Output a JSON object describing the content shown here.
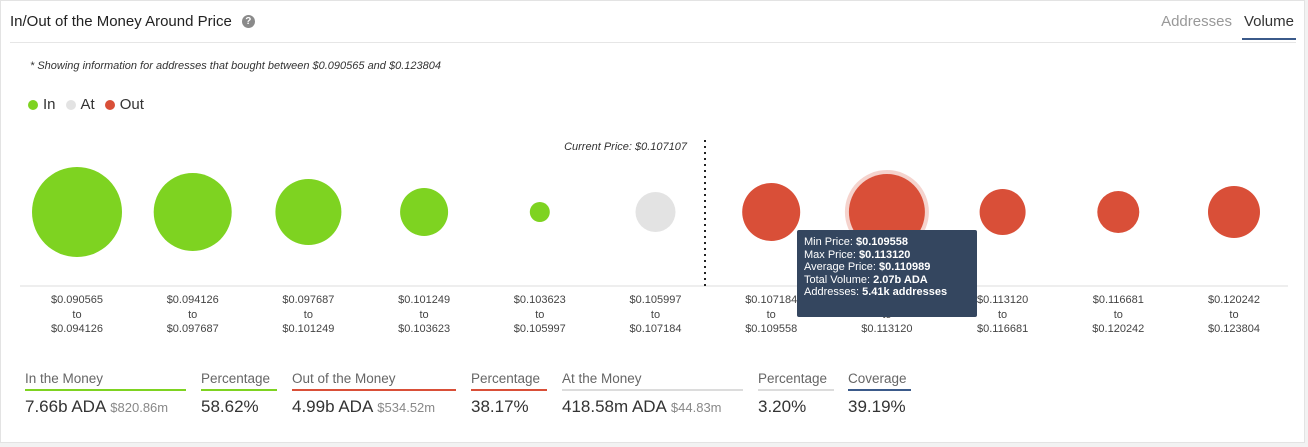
{
  "header": {
    "title": "In/Out of the Money Around Price",
    "help_icon": "?",
    "tabs": [
      "Addresses",
      "Volume"
    ],
    "active_tab": "Volume"
  },
  "note": "* Showing information for addresses that bought between $0.090565 and $0.123804",
  "legend": [
    {
      "label": "In",
      "color": "#7ed321"
    },
    {
      "label": "At",
      "color": "#e3e3e3"
    },
    {
      "label": "Out",
      "color": "#d94f38"
    }
  ],
  "chart_data": {
    "type": "scatter",
    "title": "",
    "current_price_label": "Current Price: $0.107107",
    "colors": {
      "In": "#7ed321",
      "At": "#e3e3e3",
      "Out": "#d94f38"
    },
    "categories": [
      {
        "from": "$0.090565",
        "to": "$0.094126",
        "status": "In",
        "size": 45
      },
      {
        "from": "$0.094126",
        "to": "$0.097687",
        "status": "In",
        "size": 39
      },
      {
        "from": "$0.097687",
        "to": "$0.101249",
        "status": "In",
        "size": 33
      },
      {
        "from": "$0.101249",
        "to": "$0.103623",
        "status": "In",
        "size": 24
      },
      {
        "from": "$0.103623",
        "to": "$0.105997",
        "status": "In",
        "size": 10
      },
      {
        "from": "$0.105997",
        "to": "$0.107184",
        "status": "At",
        "size": 20
      },
      {
        "from": "$0.107184",
        "to": "$0.109558",
        "status": "Out",
        "size": 29
      },
      {
        "from": "$0.109558",
        "to": "$0.113120",
        "status": "Out",
        "size": 38,
        "highlighted": true
      },
      {
        "from": "$0.113120",
        "to": "$0.116681",
        "status": "Out",
        "size": 23
      },
      {
        "from": "$0.116681",
        "to": "$0.120242",
        "status": "Out",
        "size": 21
      },
      {
        "from": "$0.120242",
        "to": "$0.123804",
        "status": "Out",
        "size": 26
      }
    ],
    "range_separator": "to",
    "tooltip": {
      "min_price_label": "Min Price:",
      "min_price": "$0.109558",
      "max_price_label": "Max Price:",
      "max_price": "$0.113120",
      "avg_price_label": "Average Price:",
      "avg_price": "$0.110989",
      "total_volume_label": "Total Volume:",
      "total_volume": "2.07b ADA",
      "addresses_label": "Addresses:",
      "addresses": "5.41k addresses"
    }
  },
  "stats": [
    {
      "label": "In the Money",
      "value": "7.66b ADA",
      "sub": "$820.86m",
      "color": "#7ed321"
    },
    {
      "label": "Percentage",
      "value": "58.62%",
      "sub": "",
      "color": "#7ed321"
    },
    {
      "label": "Out of the Money",
      "value": "4.99b ADA",
      "sub": "$534.52m",
      "color": "#d94f38"
    },
    {
      "label": "Percentage",
      "value": "38.17%",
      "sub": "",
      "color": "#d94f38"
    },
    {
      "label": "At the Money",
      "value": "418.58m ADA",
      "sub": "$44.83m",
      "color": "#dcdcdc"
    },
    {
      "label": "Percentage",
      "value": "3.20%",
      "sub": "",
      "color": "#dcdcdc"
    },
    {
      "label": "Coverage",
      "value": "39.19%",
      "sub": "",
      "color": "#3b5a8a"
    }
  ]
}
